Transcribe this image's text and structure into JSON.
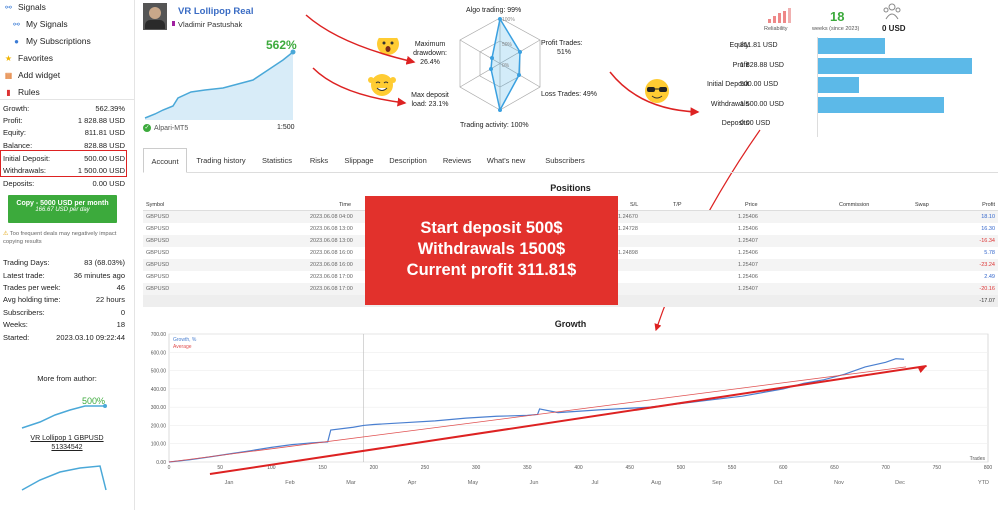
{
  "sidebar": {
    "items": [
      {
        "label": "Signals"
      },
      {
        "label": "My Signals"
      },
      {
        "label": "My Subscriptions"
      },
      {
        "label": "Favorites"
      },
      {
        "label": "Add widget"
      },
      {
        "label": "Rules"
      }
    ],
    "stats": [
      {
        "k": "Growth:",
        "v": "562.39%"
      },
      {
        "k": "Profit:",
        "v": "1 828.88 USD"
      },
      {
        "k": "Equity:",
        "v": "811.81 USD"
      },
      {
        "k": "Balance:",
        "v": "828.88 USD"
      },
      {
        "k": "Initial Deposit:",
        "v": "500.00 USD"
      },
      {
        "k": "Withdrawals:",
        "v": "1 500.00 USD"
      },
      {
        "k": "Deposits:",
        "v": "0.00 USD"
      }
    ],
    "copy_button": {
      "line1": "Copy - 5000 USD per month",
      "line2": "166.67 USD per day"
    },
    "note": "Too frequent deals may negatively impact copying results",
    "stats2": [
      {
        "k": "Trading Days:",
        "v": "83 (68.03%)"
      },
      {
        "k": "Latest trade:",
        "v": "36 minutes ago"
      },
      {
        "k": "Trades per week:",
        "v": "46"
      },
      {
        "k": "Avg holding time:",
        "v": "22 hours"
      },
      {
        "k": "Subscribers:",
        "v": "0"
      },
      {
        "k": "Weeks:",
        "v": "18"
      },
      {
        "k": "Started:",
        "v": "2023.03.10 09:22:44"
      }
    ],
    "more_from_author": "More from author:",
    "author_card": {
      "growth": "500%",
      "name": "VR Lollipop 1 GBPUSD",
      "id": "51334542"
    }
  },
  "header": {
    "signal_name": "VR Lollipop Real",
    "author": "Vladimir Pastushak",
    "growth": "562%",
    "broker": "Alpari-MT5",
    "leverage": "1:500"
  },
  "radar": {
    "labels": {
      "algo": "Algo trading: 99%",
      "profit_trades": "Profit Trades:",
      "profit_trades_v": "51%",
      "loss_trades": "Loss Trades: 49%",
      "activity": "Trading activity: 100%",
      "max_dd": "Maximum",
      "max_dd2": "drawdown:",
      "max_dd_v": "26.4%",
      "max_load": "Max deposit",
      "max_load2": "load: 23.1%"
    },
    "ticks": [
      "100%",
      "50%",
      "0%"
    ]
  },
  "reliability": {
    "label": "Reliability",
    "weeks": "18",
    "weeks_label": "weeks (since 2023)",
    "subs": "0 USD"
  },
  "bars": [
    {
      "label": "Equity",
      "value": "811.81 USD",
      "fraction": 0.44
    },
    {
      "label": "Profit",
      "value": "1 828.88 USD",
      "fraction": 1.0
    },
    {
      "label": "Initial Deposit",
      "value": "500.00 USD",
      "fraction": 0.27
    },
    {
      "label": "Withdrawals",
      "value": "1 500.00 USD",
      "fraction": 0.82
    },
    {
      "label": "Deposits",
      "value": "0.00 USD",
      "fraction": 0.0
    }
  ],
  "tabs": [
    "Account",
    "Trading history",
    "Statistics",
    "Risks",
    "Slippage",
    "Description",
    "Reviews",
    "What's new",
    "Subscribers"
  ],
  "positions": {
    "title": "Positions",
    "headers": {
      "symbol": "Symbol",
      "time": "Time",
      "sl": "S/L",
      "tp": "T/P",
      "price": "Price",
      "commission": "Commission",
      "swap": "Swap",
      "profit": "Profit"
    },
    "rows": [
      {
        "symbol": "GBPUSD",
        "time": "2023.06.08 04:00",
        "sl": "1.24670",
        "price": "1.25406",
        "profit": "18.10"
      },
      {
        "symbol": "GBPUSD",
        "time": "2023.06.08 13:00",
        "sl": "1.24728",
        "price": "1.25406",
        "profit": "16.30"
      },
      {
        "symbol": "GBPUSD",
        "time": "2023.06.08 13:00",
        "sl": "",
        "price": "1.25407",
        "profit": "-16.34"
      },
      {
        "symbol": "GBPUSD",
        "time": "2023.06.08 16:00",
        "sl": "1.24898",
        "price": "1.25406",
        "profit": "5.78"
      },
      {
        "symbol": "GBPUSD",
        "time": "2023.06.08 16:00",
        "sl": "",
        "price": "1.25407",
        "profit": "-23.24"
      },
      {
        "symbol": "GBPUSD",
        "time": "2023.06.08 17:00",
        "sl": "",
        "price": "1.25406",
        "profit": "2.49"
      },
      {
        "symbol": "GBPUSD",
        "time": "2023.06.08 17:00",
        "sl": "",
        "price": "1.25407",
        "profit": "-20.16"
      }
    ],
    "total": "-17.07"
  },
  "callout": {
    "line1": "Start deposit 500$",
    "line2": "Withdrawals  1500$",
    "line3": "Current profit 311.81$"
  },
  "growth": {
    "title": "Growth",
    "legend1": "Growth, %",
    "legend2": "Average",
    "x_end_label": "Trades",
    "ytd": "YTD"
  },
  "chart_data": {
    "type": "line",
    "title": "Growth",
    "xlabel": "Trades",
    "ylabel": "",
    "xlim": [
      0,
      800
    ],
    "ylim": [
      0,
      700
    ],
    "x_ticks": [
      0,
      50,
      100,
      150,
      200,
      250,
      300,
      350,
      400,
      450,
      500,
      550,
      600,
      650,
      700,
      750,
      800
    ],
    "y_ticks": [
      "0.00",
      "100.00",
      "200.00",
      "300.00",
      "400.00",
      "500.00",
      "600.00",
      "700.00"
    ],
    "months": [
      "Jan",
      "Feb",
      "Mar",
      "Apr",
      "May",
      "Jun",
      "Jul",
      "Aug",
      "Sep",
      "Oct",
      "Nov",
      "Dec"
    ],
    "series": [
      {
        "name": "Growth, %",
        "color": "#4a7fd0",
        "x": [
          0,
          20,
          40,
          60,
          80,
          100,
          120,
          140,
          155,
          158,
          180,
          190,
          200,
          230,
          260,
          290,
          320,
          350,
          360,
          362,
          380,
          420,
          470,
          500,
          530,
          560,
          600,
          620,
          640,
          660,
          680,
          700,
          710,
          718
        ],
        "y": [
          0,
          12,
          28,
          45,
          62,
          80,
          95,
          105,
          110,
          175,
          190,
          200,
          205,
          215,
          225,
          240,
          250,
          255,
          260,
          290,
          270,
          285,
          300,
          320,
          340,
          360,
          400,
          430,
          450,
          480,
          520,
          545,
          565,
          562
        ]
      },
      {
        "name": "Average",
        "color": "#e05050",
        "x": [
          0,
          720
        ],
        "y": [
          0,
          520
        ]
      }
    ]
  }
}
